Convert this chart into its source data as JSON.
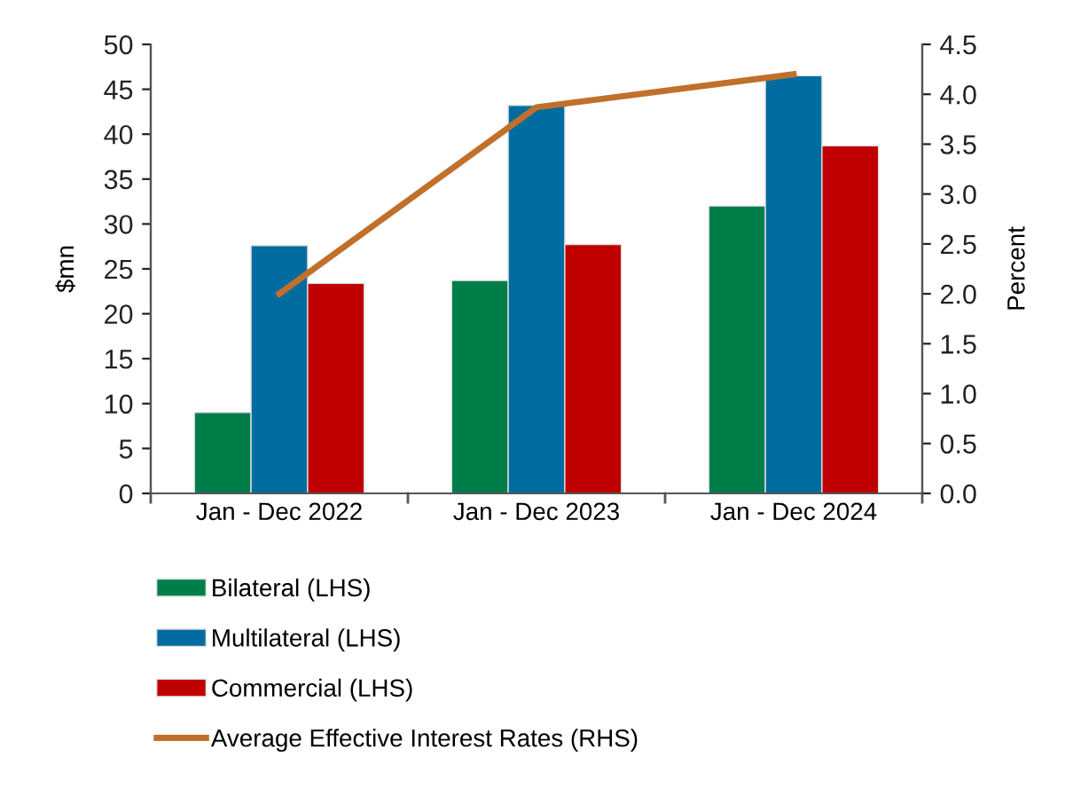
{
  "chart_data": {
    "type": "bar",
    "categories": [
      "Jan - Dec 2022",
      "Jan - Dec 2023",
      "Jan - Dec 2024"
    ],
    "ylabel": "$mn",
    "y2label": "Percent",
    "ylim": [
      0,
      50
    ],
    "yticks": [
      0,
      5,
      10,
      15,
      20,
      25,
      30,
      35,
      40,
      45,
      50
    ],
    "y2lim": [
      0,
      4.5
    ],
    "y2ticks": [
      {
        "value": 0,
        "label": "0.0"
      },
      0.5,
      {
        "value": 1,
        "label": "1.0"
      },
      1.5,
      {
        "value": 2,
        "label": "2.0"
      },
      2.5,
      {
        "value": 3,
        "label": "3.0"
      },
      3.5,
      {
        "value": 4,
        "label": "4.0"
      },
      4.5
    ],
    "grid": false,
    "legend": "bottom",
    "series": [
      {
        "name": "Bilateral (LHS)",
        "color": "#007e4a",
        "values": [
          9.0,
          23.7,
          32.0
        ]
      },
      {
        "name": "Multilateral (LHS)",
        "color": "#006ca0",
        "values": [
          27.6,
          43.2,
          46.5
        ]
      },
      {
        "name": "Commercial (LHS)",
        "color": "#c00000",
        "values": [
          23.4,
          27.7,
          38.7
        ]
      },
      {
        "name": "Average Effective Interest Rates (RHS)",
        "type": "line",
        "axis": "y2",
        "color": "#c0702a",
        "marker": "none",
        "line_style": "solid",
        "values": [
          2.0,
          3.87,
          4.2
        ]
      }
    ]
  }
}
